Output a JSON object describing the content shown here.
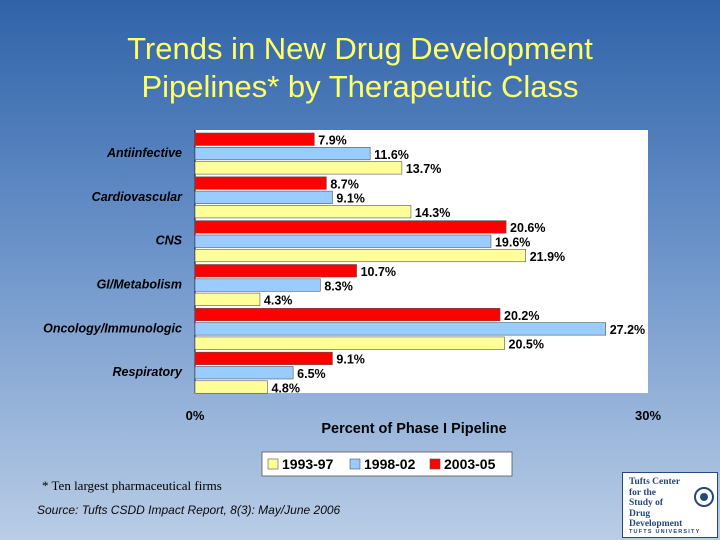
{
  "title_line1": "Trends in New Drug Development",
  "title_line2": "Pipelines* by Therapeutic Class",
  "footnote": "* Ten largest pharmaceutical firms",
  "source": "Source: Tufts CSDD Impact Report, 8(3): May/June 2006",
  "logo": {
    "lines": [
      "Tufts Center",
      "for the",
      "Study of",
      "Drug Development"
    ],
    "subtitle": "TUFTS UNIVERSITY"
  },
  "colors": {
    "series_1993_97": "#ffff99",
    "series_1998_02": "#99ccff",
    "series_2003_05": "#ff0000",
    "plot_bg": "#ffffff",
    "page_gradient_top": "#2f63a8"
  },
  "chart_data": {
    "type": "bar",
    "orientation": "horizontal",
    "xlabel": "Percent of Phase I Pipeline",
    "xlim": [
      0,
      30
    ],
    "xtick_labels": [
      "0%",
      "30%"
    ],
    "grid": false,
    "legend_placement": "bottom",
    "categories": [
      "Antiinfective",
      "Cardiovascular",
      "CNS",
      "GI/Metabolism",
      "Oncology/Immunologic",
      "Respiratory"
    ],
    "series": [
      {
        "name": "2003-05",
        "color": "#ff0000",
        "values": [
          7.9,
          8.7,
          20.6,
          10.7,
          20.2,
          9.1
        ],
        "labels": [
          "7.9%",
          "8.7%",
          "20.6%",
          "10.7%",
          "20.2%",
          "9.1%"
        ]
      },
      {
        "name": "1998-02",
        "color": "#99ccff",
        "values": [
          11.6,
          9.1,
          19.6,
          8.3,
          27.2,
          6.5
        ],
        "labels": [
          "11.6%",
          "9.1%",
          "19.6%",
          "8.3%",
          "27.2%",
          "6.5%"
        ]
      },
      {
        "name": "1993-97",
        "color": "#ffff99",
        "values": [
          13.7,
          14.3,
          21.9,
          4.3,
          20.5,
          4.8
        ],
        "labels": [
          "13.7%",
          "14.3%",
          "21.9%",
          "4.3%",
          "20.5%",
          "4.8%"
        ]
      }
    ],
    "legend_order": [
      "1993-97",
      "1998-02",
      "2003-05"
    ]
  }
}
